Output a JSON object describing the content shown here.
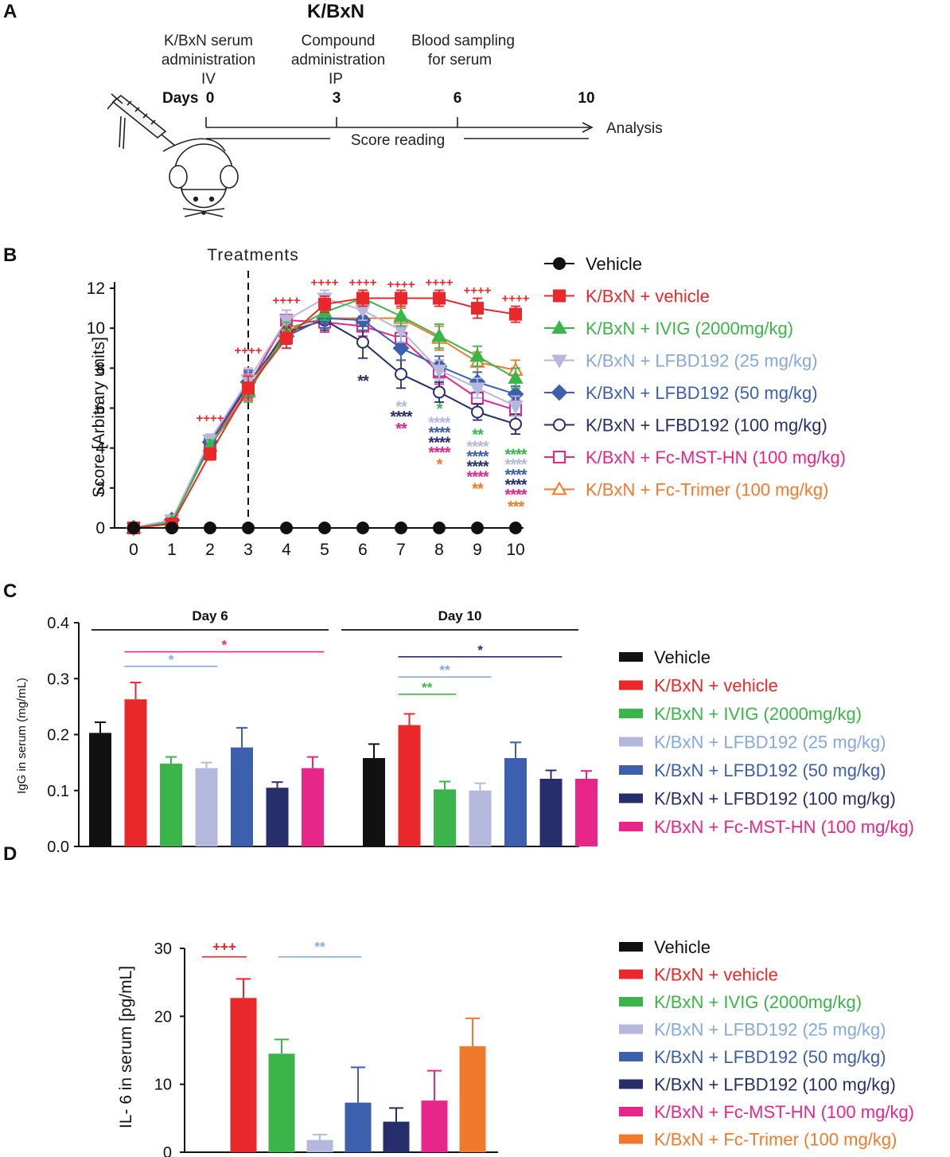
{
  "panel_a": {
    "label": "A",
    "title": "K/BxN",
    "step1": [
      "K/BxN serum",
      "administration",
      "IV"
    ],
    "step2": [
      "Compound",
      "administration",
      "IP"
    ],
    "step3": [
      "Blood sampling",
      "for serum"
    ],
    "days_label": "Days",
    "day_ticks": [
      "0",
      "3",
      "6",
      "10"
    ],
    "analysis_label": "Analysis",
    "score_reading_label": "Score reading"
  },
  "colors": {
    "black": "#111111",
    "red": "#e8282a",
    "green": "#3bb54a",
    "lightblue": "#b4b8dc",
    "lightblue_text": "#84a9d9",
    "blue": "#3c5fae",
    "navy": "#262f6b",
    "pink": "#e8268a",
    "orange": "#f07a2c"
  },
  "chart_data": [
    {
      "id": "B",
      "type": "line",
      "panel_label": "B",
      "annotation": "Treatments",
      "ylabel": "Score [Arbitrary units]",
      "x": [
        0,
        1,
        2,
        3,
        4,
        5,
        6,
        7,
        8,
        9,
        10
      ],
      "xlim": [
        0,
        10
      ],
      "ylim": [
        0,
        12
      ],
      "yticks": [
        0,
        2,
        4,
        6,
        8,
        10,
        12
      ],
      "series": [
        {
          "name": "Vehicle",
          "color": "black",
          "marker": "circle-filled",
          "values": [
            0,
            0,
            0,
            0,
            0,
            0,
            0,
            0,
            0,
            0,
            0
          ],
          "err": [
            0,
            0,
            0,
            0,
            0,
            0,
            0,
            0,
            0,
            0,
            0
          ]
        },
        {
          "name": "K/BxN + vehicle",
          "color": "red",
          "marker": "square-filled",
          "values": [
            0,
            0.2,
            3.7,
            7.0,
            9.5,
            11.2,
            11.5,
            11.5,
            11.5,
            11.0,
            10.7
          ],
          "err": [
            0,
            0.1,
            0.3,
            0.6,
            0.5,
            0.4,
            0.4,
            0.4,
            0.4,
            0.5,
            0.4
          ]
        },
        {
          "name": "K/BxN + IVIG (2000mg/kg)",
          "color": "green",
          "marker": "triangle-up-filled",
          "values": [
            0,
            0.3,
            4.1,
            6.8,
            9.8,
            10.8,
            11.5,
            10.6,
            9.6,
            8.6,
            7.5
          ],
          "err": [
            0,
            0.1,
            0.3,
            0.5,
            0.5,
            0.4,
            0.4,
            0.5,
            0.6,
            0.5,
            0.5
          ]
        },
        {
          "name": "K/BxN + LFBD192 (25 mg/kg)",
          "color": "lightblue",
          "marker": "triangle-down-filled",
          "values": [
            0,
            0.4,
            4.4,
            7.4,
            10.4,
            11.5,
            10.9,
            9.9,
            7.9,
            7.0,
            6.1
          ],
          "err": [
            0,
            0.1,
            0.3,
            0.6,
            0.5,
            0.4,
            0.5,
            0.6,
            0.5,
            0.5,
            0.5
          ]
        },
        {
          "name": "K/BxN + LFBD192 (50 mg/kg)",
          "color": "blue",
          "marker": "diamond-filled",
          "values": [
            0,
            0.4,
            4.3,
            7.3,
            9.6,
            10.5,
            10.4,
            9.0,
            8.1,
            7.3,
            6.7
          ],
          "err": [
            0,
            0.1,
            0.3,
            0.6,
            0.6,
            0.5,
            0.5,
            0.6,
            0.5,
            0.5,
            0.4
          ]
        },
        {
          "name": "K/BxN + LFBD192 (100 mg/kg)",
          "color": "navy",
          "marker": "circle-open",
          "values": [
            0,
            0.3,
            4.3,
            7.2,
            9.8,
            10.4,
            9.3,
            7.7,
            6.8,
            5.8,
            5.2
          ],
          "err": [
            0,
            0.1,
            0.3,
            0.6,
            0.6,
            0.5,
            0.8,
            0.7,
            0.5,
            0.4,
            0.5
          ]
        },
        {
          "name": "K/BxN + Fc-MST-HN (100 mg/kg)",
          "color": "pink",
          "marker": "square-open",
          "values": [
            0,
            0.3,
            4.2,
            7.1,
            10.4,
            10.3,
            10.1,
            9.5,
            7.8,
            6.5,
            5.9
          ],
          "err": [
            0,
            0.1,
            0.3,
            0.6,
            0.5,
            0.5,
            0.5,
            0.5,
            0.6,
            0.5,
            0.5
          ]
        },
        {
          "name": "K/BxN + Fc-Trimer (100 mg/kg)",
          "color": "orange",
          "marker": "triangle-up-open",
          "values": [
            0,
            0.3,
            4.1,
            6.9,
            10.0,
            10.5,
            10.5,
            10.5,
            9.5,
            8.3,
            7.9
          ],
          "err": [
            0,
            0.1,
            0.3,
            0.5,
            0.5,
            0.5,
            0.5,
            0.5,
            0.6,
            0.5,
            0.5
          ]
        }
      ],
      "plus_marks": [
        {
          "x": 3,
          "y": 8.7,
          "text": "++++"
        },
        {
          "x": 4,
          "y": 11.2,
          "text": "++++"
        },
        {
          "x": 5,
          "y": 12.1,
          "text": "++++"
        },
        {
          "x": 6,
          "y": 12.1,
          "text": "++++"
        },
        {
          "x": 7,
          "y": 12.0,
          "text": "++++"
        },
        {
          "x": 8,
          "y": 12.1,
          "text": "++++"
        },
        {
          "x": 9,
          "y": 11.7,
          "text": "++++"
        },
        {
          "x": 10,
          "y": 11.3,
          "text": "++++"
        },
        {
          "x": 2,
          "y": 5.3,
          "text": "++++"
        }
      ],
      "star_marks": [
        {
          "x": 6,
          "y": 7.5,
          "text": "**",
          "color": "navy"
        },
        {
          "x": 7,
          "y": 6.2,
          "text": "**",
          "color": "lightblue"
        },
        {
          "x": 7,
          "y": 5.7,
          "text": "****",
          "color": "navy"
        },
        {
          "x": 7,
          "y": 5.1,
          "text": "**",
          "color": "pink"
        },
        {
          "x": 8,
          "y": 6.1,
          "text": "*",
          "color": "green"
        },
        {
          "x": 8,
          "y": 5.4,
          "text": "****",
          "color": "lightblue"
        },
        {
          "x": 8,
          "y": 4.9,
          "text": "****",
          "color": "blue"
        },
        {
          "x": 8,
          "y": 4.4,
          "text": "****",
          "color": "navy"
        },
        {
          "x": 8,
          "y": 3.9,
          "text": "****",
          "color": "pink"
        },
        {
          "x": 8,
          "y": 3.3,
          "text": "*",
          "color": "orange"
        },
        {
          "x": 9,
          "y": 4.8,
          "text": "**",
          "color": "green"
        },
        {
          "x": 9,
          "y": 4.2,
          "text": "****",
          "color": "lightblue"
        },
        {
          "x": 9,
          "y": 3.7,
          "text": "****",
          "color": "blue"
        },
        {
          "x": 9,
          "y": 3.2,
          "text": "****",
          "color": "navy"
        },
        {
          "x": 9,
          "y": 2.7,
          "text": "****",
          "color": "pink"
        },
        {
          "x": 9,
          "y": 2.1,
          "text": "**",
          "color": "orange"
        },
        {
          "x": 10,
          "y": 3.8,
          "text": "****",
          "color": "green"
        },
        {
          "x": 10,
          "y": 3.3,
          "text": "****",
          "color": "lightblue"
        },
        {
          "x": 10,
          "y": 2.8,
          "text": "****",
          "color": "blue"
        },
        {
          "x": 10,
          "y": 2.3,
          "text": "****",
          "color": "navy"
        },
        {
          "x": 10,
          "y": 1.8,
          "text": "****",
          "color": "pink"
        },
        {
          "x": 10,
          "y": 1.2,
          "text": "***",
          "color": "orange"
        }
      ]
    },
    {
      "id": "C",
      "type": "bar",
      "panel_label": "C",
      "ylabel": "IgG in serum (mg/mL)",
      "ylim": [
        0,
        0.4
      ],
      "yticks": [
        "0.0",
        "0.1",
        "0.2",
        "0.3",
        "0.4"
      ],
      "groups": [
        {
          "label": "Day 6",
          "bars": [
            {
              "color": "black",
              "value": 0.203,
              "err": 0.019
            },
            {
              "color": "red",
              "value": 0.263,
              "err": 0.03
            },
            {
              "color": "green",
              "value": 0.148,
              "err": 0.012
            },
            {
              "color": "lightblue",
              "value": 0.14,
              "err": 0.01
            },
            {
              "color": "blue",
              "value": 0.177,
              "err": 0.035
            },
            {
              "color": "navy",
              "value": 0.105,
              "err": 0.01
            },
            {
              "color": "pink",
              "value": 0.14,
              "err": 0.02
            }
          ]
        },
        {
          "label": "Day 10",
          "bars": [
            {
              "color": "black",
              "value": 0.158,
              "err": 0.025
            },
            {
              "color": "red",
              "value": 0.217,
              "err": 0.02
            },
            {
              "color": "green",
              "value": 0.102,
              "err": 0.014
            },
            {
              "color": "lightblue",
              "value": 0.1,
              "err": 0.013
            },
            {
              "color": "blue",
              "value": 0.158,
              "err": 0.028
            },
            {
              "color": "navy",
              "value": 0.121,
              "err": 0.015
            },
            {
              "color": "pink",
              "value": 0.121,
              "err": 0.014
            }
          ]
        }
      ],
      "significance": [
        {
          "group": 0,
          "from": 1,
          "to": 3,
          "y": 0.322,
          "text": "*",
          "color": "lightblue_text"
        },
        {
          "group": 0,
          "from": 1,
          "to": 6,
          "y": 0.348,
          "text": "*",
          "color": "pink"
        },
        {
          "group": 1,
          "from": 1,
          "to": 2,
          "y": 0.272,
          "text": "**",
          "color": "green"
        },
        {
          "group": 1,
          "from": 1,
          "to": 3,
          "y": 0.303,
          "text": "**",
          "color": "lightblue_text"
        },
        {
          "group": 1,
          "from": 1,
          "to": 5,
          "y": 0.339,
          "text": "*",
          "color": "navy"
        }
      ],
      "legend": [
        {
          "label": "Vehicle",
          "color": "black"
        },
        {
          "label": "K/BxN + vehicle",
          "color": "red"
        },
        {
          "label": "K/BxN + IVIG (2000mg/kg)",
          "color": "green"
        },
        {
          "label": " K/BxN + LFBD192 (25 mg/kg)",
          "color": "lightblue"
        },
        {
          "label": "K/BxN + LFBD192 (50 mg/kg)",
          "color": "blue"
        },
        {
          "label": "K/BxN + LFBD192 (100 mg/kg)",
          "color": "navy"
        },
        {
          "label": "K/BxN + Fc-MST-HN (100 mg/kg)",
          "color": "pink"
        }
      ]
    },
    {
      "id": "D",
      "type": "bar",
      "panel_label": "D",
      "ylabel": "IL- 6 in serum [pg/mL]",
      "ylim": [
        0,
        30
      ],
      "yticks": [
        "0",
        "10",
        "20",
        "30"
      ],
      "bars": [
        {
          "color": "black",
          "value": 0,
          "err": 0
        },
        {
          "color": "red",
          "value": 22.7,
          "err": 2.8
        },
        {
          "color": "green",
          "value": 14.5,
          "err": 2.1
        },
        {
          "color": "lightblue",
          "value": 1.8,
          "err": 0.8
        },
        {
          "color": "blue",
          "value": 7.3,
          "err": 5.2
        },
        {
          "color": "navy",
          "value": 4.5,
          "err": 2.0
        },
        {
          "color": "pink",
          "value": 7.6,
          "err": 4.4
        },
        {
          "color": "orange",
          "value": 15.6,
          "err": 4.1
        }
      ],
      "significance": [
        {
          "from": 0,
          "to": 1,
          "y": 29.8,
          "text": "+++",
          "color": "red"
        },
        {
          "from": 2,
          "to": 4,
          "y": 29.8,
          "text": "**",
          "color": "lightblue_text"
        }
      ],
      "legend": [
        {
          "label": "Vehicle",
          "color": "black"
        },
        {
          "label": "K/BxN + vehicle",
          "color": "red"
        },
        {
          "label": "K/BxN + IVIG (2000mg/kg)",
          "color": "green"
        },
        {
          "label": " K/BxN + LFBD192 (25 mg/kg)",
          "color": "lightblue"
        },
        {
          "label": "K/BxN + LFBD192 (50 mg/kg)",
          "color": "blue"
        },
        {
          "label": "K/BxN + LFBD192 (100 mg/kg)",
          "color": "navy"
        },
        {
          "label": "K/BxN + Fc-MST-HN (100 mg/kg)",
          "color": "pink"
        },
        {
          "label": "K/BxN + Fc-Trimer (100 mg/kg)",
          "color": "orange"
        }
      ]
    }
  ]
}
